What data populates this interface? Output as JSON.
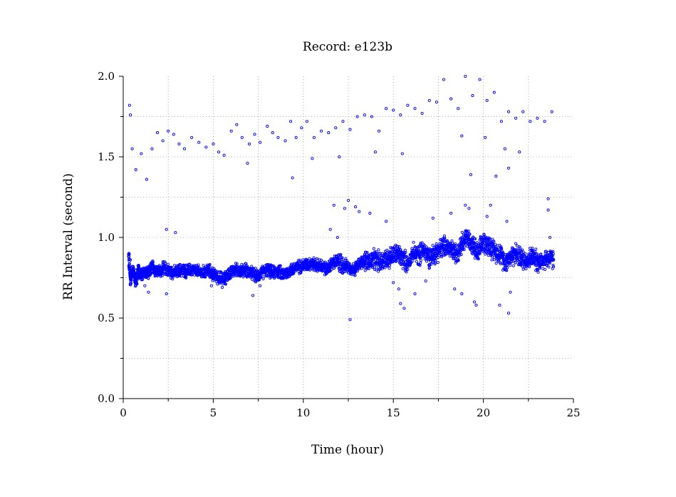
{
  "chart_data": {
    "type": "scatter",
    "title": "Record:  e123b",
    "xlabel": "Time (hour)",
    "ylabel": "RR Interval (second)",
    "xlim": [
      0,
      25
    ],
    "ylim": [
      0,
      2.0
    ],
    "xticks": [
      0,
      5,
      10,
      15,
      20,
      25
    ],
    "xtick_labels": [
      "0",
      "5",
      "10",
      "15",
      "20",
      "25"
    ],
    "xtick_minor": [
      2.5,
      7.5,
      12.5,
      17.5,
      22.5
    ],
    "yticks": [
      0,
      0.5,
      1.0,
      1.5,
      2.0
    ],
    "ytick_labels": [
      "0.0",
      "0.5",
      "1.0",
      "1.5",
      "2.0"
    ],
    "ytick_minor": [
      0.25,
      0.75,
      1.25,
      1.75
    ],
    "grid": true,
    "marker": "open-circle",
    "color": "#0000ff",
    "series": [
      {
        "values": [
          [
            0.3,
            0.88
          ],
          [
            0.4,
            0.74
          ],
          [
            0.55,
            0.8
          ],
          [
            0.7,
            0.72
          ],
          [
            0.85,
            0.8
          ],
          [
            1.0,
            0.76
          ],
          [
            1.2,
            0.79
          ],
          [
            1.4,
            0.77
          ],
          [
            1.6,
            0.82
          ],
          [
            1.8,
            0.8
          ],
          [
            2.0,
            0.79
          ],
          [
            2.3,
            0.81
          ],
          [
            2.6,
            0.79
          ],
          [
            2.9,
            0.78
          ],
          [
            3.2,
            0.8
          ],
          [
            3.5,
            0.79
          ],
          [
            3.8,
            0.8
          ],
          [
            4.1,
            0.79
          ],
          [
            4.4,
            0.78
          ],
          [
            4.7,
            0.8
          ],
          [
            5.0,
            0.77
          ],
          [
            5.3,
            0.75
          ],
          [
            5.6,
            0.74
          ],
          [
            5.9,
            0.78
          ],
          [
            6.2,
            0.8
          ],
          [
            6.5,
            0.79
          ],
          [
            6.8,
            0.8
          ],
          [
            7.1,
            0.78
          ],
          [
            7.4,
            0.76
          ],
          [
            7.7,
            0.78
          ],
          [
            8.0,
            0.8
          ],
          [
            8.3,
            0.78
          ],
          [
            8.6,
            0.79
          ],
          [
            8.9,
            0.77
          ],
          [
            9.2,
            0.79
          ],
          [
            9.5,
            0.81
          ],
          [
            9.8,
            0.82
          ],
          [
            10.1,
            0.83
          ],
          [
            10.4,
            0.84
          ],
          [
            10.7,
            0.83
          ],
          [
            11.0,
            0.82
          ],
          [
            11.3,
            0.8
          ],
          [
            11.6,
            0.84
          ],
          [
            11.9,
            0.85
          ],
          [
            12.2,
            0.83
          ],
          [
            12.5,
            0.82
          ],
          [
            12.8,
            0.8
          ],
          [
            13.1,
            0.83
          ],
          [
            13.4,
            0.86
          ],
          [
            13.7,
            0.85
          ],
          [
            14.0,
            0.86
          ],
          [
            14.3,
            0.85
          ],
          [
            14.6,
            0.87
          ],
          [
            14.9,
            0.88
          ],
          [
            15.2,
            0.9
          ],
          [
            15.5,
            0.87
          ],
          [
            15.8,
            0.84
          ],
          [
            16.1,
            0.9
          ],
          [
            16.4,
            0.89
          ],
          [
            16.7,
            0.92
          ],
          [
            17.0,
            0.88
          ],
          [
            17.3,
            0.9
          ],
          [
            17.6,
            0.93
          ],
          [
            17.9,
            0.95
          ],
          [
            18.2,
            0.92
          ],
          [
            18.5,
            0.9
          ],
          [
            18.8,
            0.97
          ],
          [
            19.1,
            1.0
          ],
          [
            19.4,
            0.95
          ],
          [
            19.7,
            0.9
          ],
          [
            20.0,
            0.97
          ],
          [
            20.3,
            0.95
          ],
          [
            20.6,
            0.92
          ],
          [
            20.9,
            0.9
          ],
          [
            21.2,
            0.85
          ],
          [
            21.5,
            0.88
          ],
          [
            21.8,
            0.9
          ],
          [
            22.1,
            0.87
          ],
          [
            22.4,
            0.86
          ],
          [
            22.7,
            0.88
          ],
          [
            23.0,
            0.85
          ],
          [
            23.3,
            0.86
          ],
          [
            23.6,
            0.87
          ],
          [
            23.9,
            0.86
          ]
        ]
      },
      {
        "values": [
          [
            0.35,
            1.82
          ],
          [
            0.4,
            1.76
          ],
          [
            0.5,
            1.55
          ],
          [
            0.7,
            1.42
          ],
          [
            1.0,
            1.52
          ],
          [
            1.3,
            1.36
          ],
          [
            1.6,
            1.55
          ],
          [
            1.9,
            1.65
          ],
          [
            2.2,
            1.6
          ],
          [
            2.5,
            1.66
          ],
          [
            2.8,
            1.64
          ],
          [
            3.1,
            1.58
          ],
          [
            3.4,
            1.55
          ],
          [
            3.8,
            1.62
          ],
          [
            4.2,
            1.59
          ],
          [
            4.6,
            1.56
          ],
          [
            5.0,
            1.58
          ],
          [
            5.3,
            1.53
          ],
          [
            5.6,
            1.51
          ],
          [
            6.0,
            1.66
          ],
          [
            6.3,
            1.7
          ],
          [
            6.6,
            1.62
          ],
          [
            7.0,
            1.58
          ],
          [
            7.3,
            1.64
          ],
          [
            7.6,
            1.59
          ],
          [
            8.0,
            1.69
          ],
          [
            8.3,
            1.65
          ],
          [
            8.6,
            1.62
          ],
          [
            9.0,
            1.6
          ],
          [
            9.3,
            1.72
          ],
          [
            9.6,
            1.62
          ],
          [
            9.9,
            1.68
          ],
          [
            10.2,
            1.72
          ],
          [
            10.6,
            1.62
          ],
          [
            11.0,
            1.66
          ],
          [
            11.4,
            1.65
          ],
          [
            11.8,
            1.68
          ],
          [
            12.2,
            1.72
          ],
          [
            12.6,
            1.67
          ],
          [
            13.0,
            1.75
          ],
          [
            13.4,
            1.76
          ],
          [
            13.8,
            1.75
          ],
          [
            14.2,
            1.66
          ],
          [
            14.6,
            1.8
          ],
          [
            15.0,
            1.79
          ],
          [
            15.4,
            1.76
          ],
          [
            15.8,
            1.82
          ],
          [
            16.2,
            1.8
          ],
          [
            16.6,
            1.77
          ],
          [
            17.0,
            1.85
          ],
          [
            17.4,
            1.84
          ],
          [
            17.8,
            1.98
          ],
          [
            18.2,
            1.86
          ],
          [
            18.6,
            1.8
          ],
          [
            19.0,
            2.0
          ],
          [
            19.4,
            1.88
          ],
          [
            19.8,
            1.98
          ],
          [
            20.2,
            1.85
          ],
          [
            20.6,
            1.9
          ],
          [
            21.0,
            1.72
          ],
          [
            21.4,
            1.78
          ],
          [
            21.8,
            1.74
          ],
          [
            22.2,
            1.78
          ],
          [
            22.6,
            1.72
          ],
          [
            23.0,
            1.74
          ],
          [
            23.4,
            1.72
          ],
          [
            23.8,
            1.78
          ],
          [
            6.9,
            1.46
          ],
          [
            9.4,
            1.37
          ],
          [
            10.5,
            1.49
          ],
          [
            12.0,
            1.5
          ],
          [
            14.0,
            1.53
          ],
          [
            15.5,
            1.52
          ],
          [
            18.8,
            1.63
          ],
          [
            19.3,
            1.39
          ],
          [
            20.1,
            1.62
          ],
          [
            20.7,
            1.38
          ],
          [
            21.2,
            1.55
          ],
          [
            21.4,
            1.43
          ],
          [
            22.0,
            1.53
          ]
        ]
      },
      {
        "values": [
          [
            0.4,
            0.86
          ],
          [
            1.2,
            0.7
          ],
          [
            1.4,
            0.66
          ],
          [
            2.4,
            1.05
          ],
          [
            2.4,
            0.65
          ],
          [
            2.9,
            1.03
          ],
          [
            3.2,
            0.78
          ],
          [
            4.9,
            0.7
          ],
          [
            5.5,
            0.69
          ],
          [
            7.2,
            0.64
          ],
          [
            7.6,
            0.7
          ],
          [
            9.1,
            0.75
          ],
          [
            11.7,
            1.2
          ],
          [
            11.9,
            1.0
          ],
          [
            11.5,
            1.05
          ],
          [
            12.5,
            1.23
          ],
          [
            12.6,
            0.49
          ],
          [
            12.3,
            1.18
          ],
          [
            12.9,
            1.19
          ],
          [
            13.1,
            1.16
          ],
          [
            13.7,
            1.15
          ],
          [
            14.6,
            1.1
          ],
          [
            15.0,
            0.72
          ],
          [
            15.3,
            0.68
          ],
          [
            15.4,
            0.59
          ],
          [
            15.6,
            0.56
          ],
          [
            16.2,
            0.65
          ],
          [
            16.8,
            0.73
          ],
          [
            17.2,
            1.12
          ],
          [
            18.2,
            1.15
          ],
          [
            18.4,
            0.68
          ],
          [
            18.8,
            0.65
          ],
          [
            19.0,
            1.2
          ],
          [
            19.2,
            1.18
          ],
          [
            19.5,
            0.6
          ],
          [
            19.6,
            0.58
          ],
          [
            20.2,
            1.13
          ],
          [
            20.4,
            1.2
          ],
          [
            20.9,
            0.58
          ],
          [
            21.3,
            1.1
          ],
          [
            21.4,
            0.53
          ],
          [
            21.5,
            0.66
          ],
          [
            23.6,
            1.24
          ],
          [
            23.6,
            1.17
          ],
          [
            23.7,
            1.0
          ]
        ]
      }
    ]
  }
}
